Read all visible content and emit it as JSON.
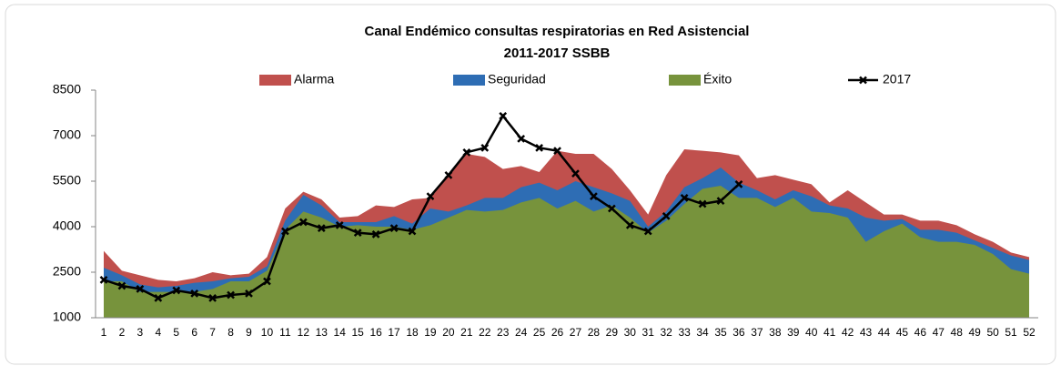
{
  "chart_data": {
    "type": "area",
    "title": "Canal Endémico consultas respiratorias en Red Asistencial",
    "subtitle": "2011-2017 SSBB",
    "categories": [
      1,
      2,
      3,
      4,
      5,
      6,
      7,
      8,
      9,
      10,
      11,
      12,
      13,
      14,
      15,
      16,
      17,
      18,
      19,
      20,
      21,
      22,
      23,
      24,
      25,
      26,
      27,
      28,
      29,
      30,
      31,
      32,
      33,
      34,
      35,
      36,
      37,
      38,
      39,
      40,
      41,
      42,
      43,
      44,
      45,
      46,
      47,
      48,
      49,
      50,
      51,
      52
    ],
    "ylim": [
      1000,
      8500
    ],
    "yticks": [
      1000,
      2500,
      4000,
      5500,
      7000,
      8500
    ],
    "grid": false,
    "legend": "top",
    "series": [
      {
        "name": "Alarma",
        "color": "#c0504d",
        "values": [
          3200,
          2550,
          2400,
          2250,
          2200,
          2300,
          2500,
          2400,
          2450,
          3000,
          4600,
          5150,
          4900,
          4300,
          4350,
          4700,
          4650,
          4900,
          4950,
          5650,
          6400,
          6300,
          5900,
          6000,
          5800,
          6500,
          6400,
          6400,
          5900,
          5200,
          4400,
          5700,
          6550,
          6500,
          6450,
          6350,
          5600,
          5700,
          5550,
          5400,
          4800,
          5200,
          4800,
          4400,
          4400,
          4200,
          4200,
          4050,
          3750,
          3500,
          3150,
          3000
        ]
      },
      {
        "name": "Seguridad",
        "color": "#2e6db4",
        "values": [
          2650,
          2400,
          2100,
          2000,
          2050,
          2150,
          2200,
          2300,
          2350,
          2700,
          4200,
          5050,
          4700,
          4150,
          4150,
          4150,
          4350,
          4100,
          4600,
          4500,
          4700,
          4950,
          4950,
          5300,
          5450,
          5200,
          5500,
          5300,
          5100,
          4850,
          4000,
          4500,
          5300,
          5600,
          5950,
          5450,
          5200,
          4900,
          5200,
          5000,
          4700,
          4600,
          4300,
          4200,
          4250,
          3900,
          3900,
          3800,
          3550,
          3300,
          3050,
          2900
        ]
      },
      {
        "name": "Éxito",
        "color": "#77933c",
        "values": [
          2200,
          2200,
          1850,
          1850,
          1850,
          1850,
          1950,
          2200,
          2200,
          2550,
          3900,
          4500,
          4300,
          4000,
          4050,
          4000,
          4000,
          3900,
          4050,
          4300,
          4550,
          4500,
          4550,
          4800,
          4950,
          4600,
          4850,
          4500,
          4700,
          4300,
          3800,
          4200,
          4750,
          5250,
          5350,
          4950,
          4950,
          4650,
          4950,
          4500,
          4450,
          4300,
          3500,
          3850,
          4100,
          3650,
          3500,
          3500,
          3400,
          3100,
          2600,
          2450
        ]
      },
      {
        "name": "2017",
        "color": "#000000",
        "kind": "line",
        "values": [
          2250,
          2050,
          1950,
          1650,
          1900,
          1800,
          1650,
          1750,
          1800,
          2200,
          3850,
          4150,
          3950,
          4050,
          3800,
          3750,
          3950,
          3850,
          5000,
          5700,
          6450,
          6600,
          7650,
          6900,
          6600,
          6500,
          5750,
          5000,
          4600,
          4050,
          3850,
          4350,
          4950,
          4750,
          4850,
          5400,
          null,
          null,
          null,
          null,
          null,
          null,
          null,
          null,
          null,
          null,
          null,
          null,
          null,
          null,
          null,
          null
        ]
      }
    ]
  }
}
